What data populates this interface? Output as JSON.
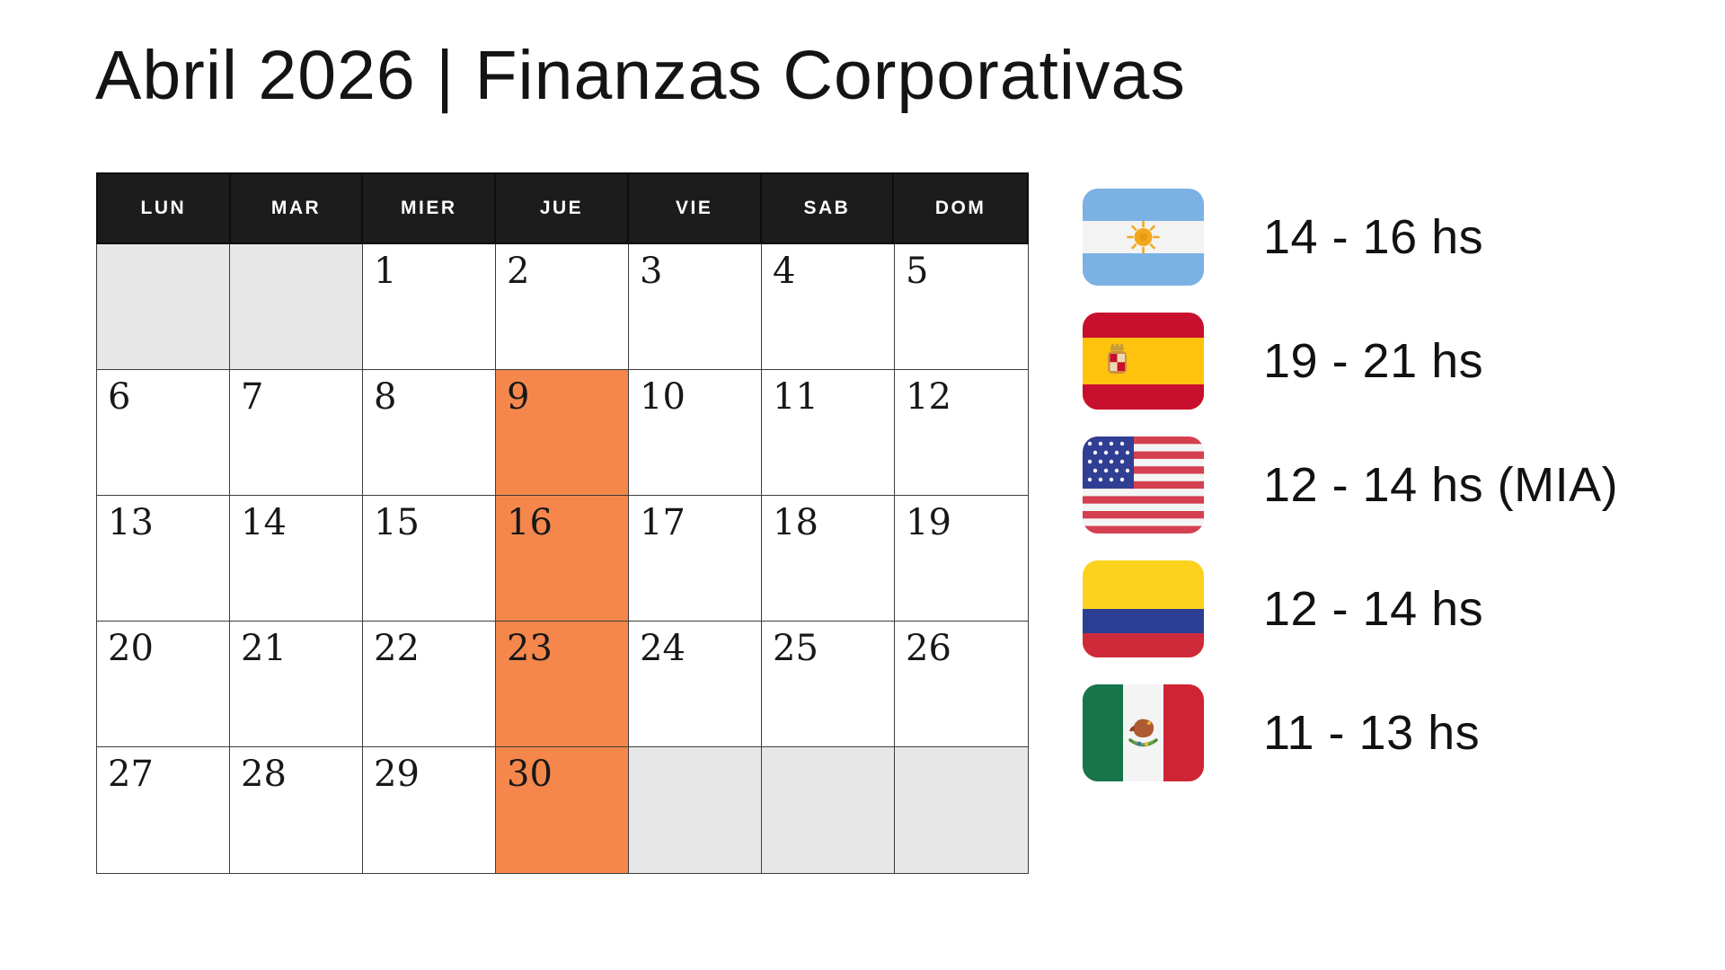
{
  "title": "Abril 2026 | Finanzas Corporativas",
  "calendar": {
    "weekday_headers": [
      "LUN",
      "MAR",
      "MIER",
      "JUE",
      "VIE",
      "SAB",
      "DOM"
    ],
    "weeks": [
      [
        {
          "day": "",
          "type": "empty"
        },
        {
          "day": "",
          "type": "empty"
        },
        {
          "day": "1",
          "type": "normal"
        },
        {
          "day": "2",
          "type": "normal"
        },
        {
          "day": "3",
          "type": "normal"
        },
        {
          "day": "4",
          "type": "normal"
        },
        {
          "day": "5",
          "type": "normal"
        }
      ],
      [
        {
          "day": "6",
          "type": "normal"
        },
        {
          "day": "7",
          "type": "normal"
        },
        {
          "day": "8",
          "type": "normal"
        },
        {
          "day": "9",
          "type": "highlight"
        },
        {
          "day": "10",
          "type": "normal"
        },
        {
          "day": "11",
          "type": "normal"
        },
        {
          "day": "12",
          "type": "normal"
        }
      ],
      [
        {
          "day": "13",
          "type": "normal"
        },
        {
          "day": "14",
          "type": "normal"
        },
        {
          "day": "15",
          "type": "normal"
        },
        {
          "day": "16",
          "type": "highlight"
        },
        {
          "day": "17",
          "type": "normal"
        },
        {
          "day": "18",
          "type": "normal"
        },
        {
          "day": "19",
          "type": "normal"
        }
      ],
      [
        {
          "day": "20",
          "type": "normal"
        },
        {
          "day": "21",
          "type": "normal"
        },
        {
          "day": "22",
          "type": "normal"
        },
        {
          "day": "23",
          "type": "highlight"
        },
        {
          "day": "24",
          "type": "normal"
        },
        {
          "day": "25",
          "type": "normal"
        },
        {
          "day": "26",
          "type": "normal"
        }
      ],
      [
        {
          "day": "27",
          "type": "normal"
        },
        {
          "day": "28",
          "type": "normal"
        },
        {
          "day": "29",
          "type": "normal"
        },
        {
          "day": "30",
          "type": "highlight"
        },
        {
          "day": "",
          "type": "empty"
        },
        {
          "day": "",
          "type": "empty"
        },
        {
          "day": "",
          "type": "empty"
        }
      ]
    ],
    "colors": {
      "header_bg": "#1C1C1C",
      "header_text": "#FFFFFF",
      "highlight": "#F5874C",
      "empty_cell": "#E7E7E7",
      "grid_line": "#3C3C3C"
    }
  },
  "legend": {
    "items": [
      {
        "flag_icon": "argentina-flag-icon",
        "time": "14 - 16 hs"
      },
      {
        "flag_icon": "spain-flag-icon",
        "time": "19 - 21 hs"
      },
      {
        "flag_icon": "usa-flag-icon",
        "time": "12 - 14 hs (MIA)"
      },
      {
        "flag_icon": "colombia-flag-icon",
        "time": "12 - 14 hs"
      },
      {
        "flag_icon": "mexico-flag-icon",
        "time": "11 - 13 hs"
      }
    ]
  }
}
